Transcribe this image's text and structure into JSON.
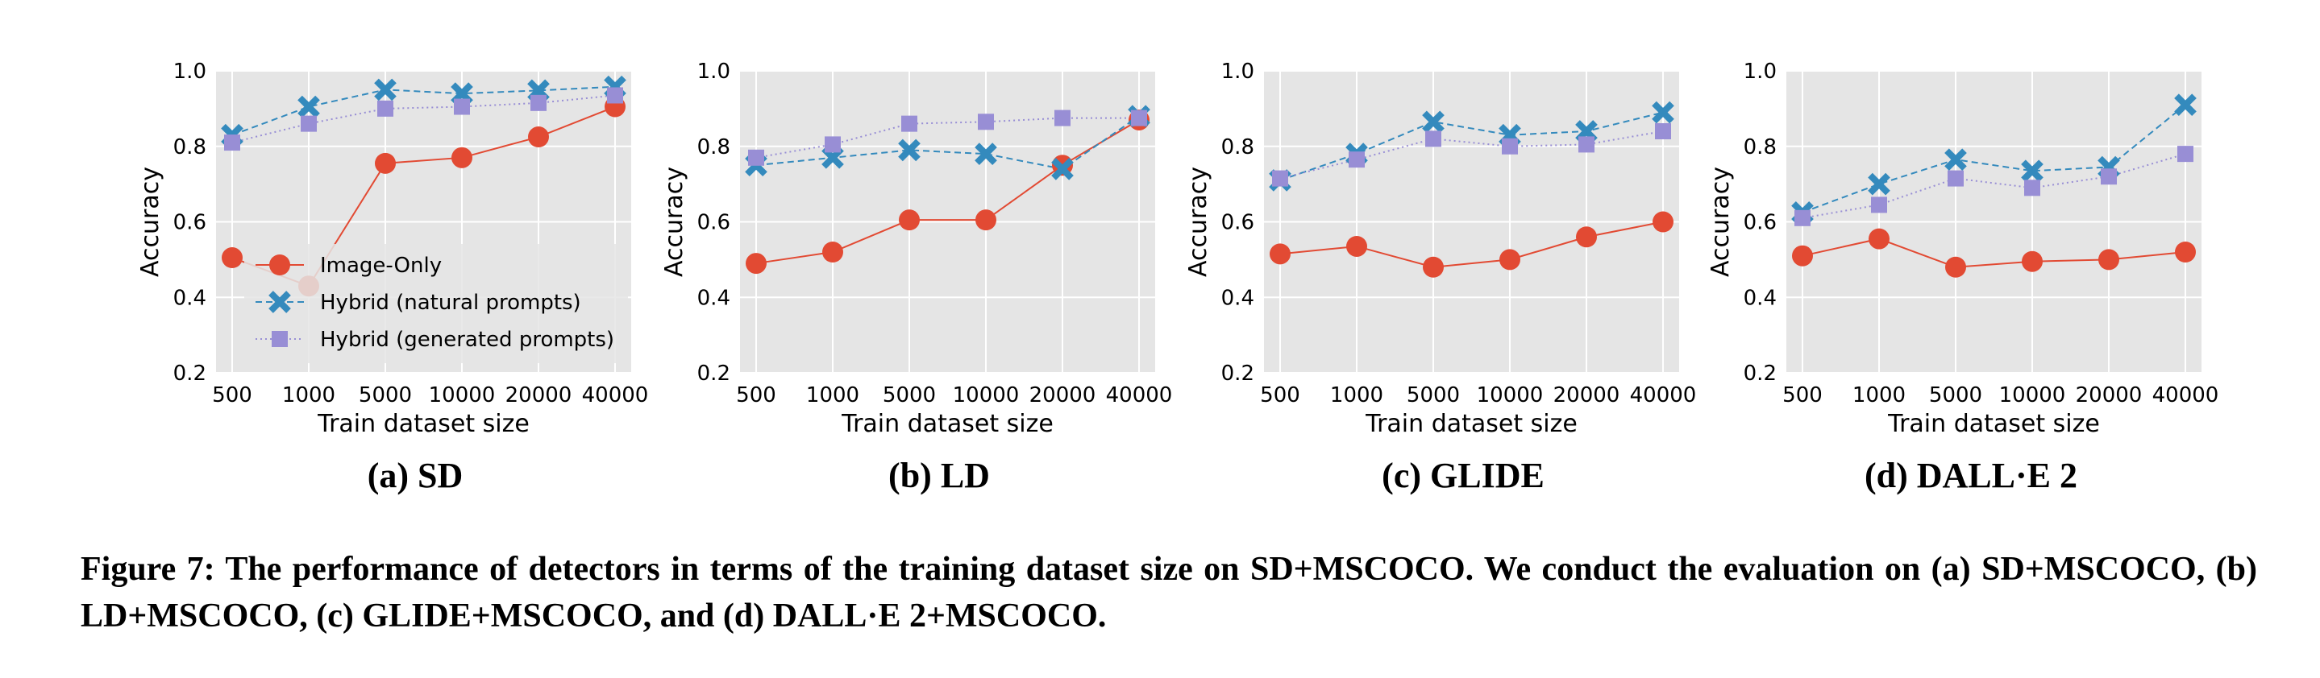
{
  "chart_data": [
    {
      "type": "line",
      "caption": "(a) SD",
      "categories": [
        "500",
        "1000",
        "5000",
        "10000",
        "20000",
        "40000"
      ],
      "xlabel": "Train dataset size",
      "ylabel": "Accuracy",
      "ylim": [
        0.2,
        1.0
      ],
      "yticks": [
        "0.2",
        "0.4",
        "0.6",
        "0.8",
        "1.0"
      ],
      "grid": true,
      "legend": "lower-right",
      "series": [
        {
          "name": "Image-Only",
          "values": [
            0.505,
            0.43,
            0.755,
            0.77,
            0.825,
            0.905
          ]
        },
        {
          "name": "Hybrid (natural prompts)",
          "values": [
            0.83,
            0.905,
            0.95,
            0.94,
            0.948,
            0.958
          ]
        },
        {
          "name": "Hybrid (generated prompts)",
          "values": [
            0.81,
            0.86,
            0.9,
            0.905,
            0.915,
            0.935
          ]
        }
      ]
    },
    {
      "type": "line",
      "caption": "(b) LD",
      "categories": [
        "500",
        "1000",
        "5000",
        "10000",
        "20000",
        "40000"
      ],
      "xlabel": "Train dataset size",
      "ylabel": "Accuracy",
      "ylim": [
        0.2,
        1.0
      ],
      "yticks": [
        "0.2",
        "0.4",
        "0.6",
        "0.8",
        "1.0"
      ],
      "grid": true,
      "series": [
        {
          "values": [
            0.49,
            0.52,
            0.605,
            0.605,
            0.75,
            0.87
          ]
        },
        {
          "values": [
            0.75,
            0.77,
            0.79,
            0.78,
            0.74,
            0.88
          ]
        },
        {
          "values": [
            0.77,
            0.805,
            0.86,
            0.865,
            0.875,
            0.875
          ]
        }
      ]
    },
    {
      "type": "line",
      "caption": "(c) GLIDE",
      "categories": [
        "500",
        "1000",
        "5000",
        "10000",
        "20000",
        "40000"
      ],
      "xlabel": "Train dataset size",
      "ylabel": "Accuracy",
      "ylim": [
        0.2,
        1.0
      ],
      "yticks": [
        "0.2",
        "0.4",
        "0.6",
        "0.8",
        "1.0"
      ],
      "grid": true,
      "series": [
        {
          "values": [
            0.515,
            0.535,
            0.48,
            0.5,
            0.56,
            0.6
          ]
        },
        {
          "values": [
            0.71,
            0.78,
            0.865,
            0.83,
            0.84,
            0.89
          ]
        },
        {
          "values": [
            0.715,
            0.765,
            0.82,
            0.8,
            0.805,
            0.84
          ]
        }
      ]
    },
    {
      "type": "line",
      "caption": "(d) DALL·E 2",
      "categories": [
        "500",
        "1000",
        "5000",
        "10000",
        "20000",
        "40000"
      ],
      "xlabel": "Train dataset size",
      "ylabel": "Accuracy",
      "ylim": [
        0.2,
        1.0
      ],
      "yticks": [
        "0.2",
        "0.4",
        "0.6",
        "0.8",
        "1.0"
      ],
      "grid": true,
      "series": [
        {
          "values": [
            0.51,
            0.555,
            0.48,
            0.495,
            0.5,
            0.52
          ]
        },
        {
          "values": [
            0.625,
            0.7,
            0.765,
            0.735,
            0.745,
            0.91
          ]
        },
        {
          "values": [
            0.61,
            0.645,
            0.715,
            0.69,
            0.72,
            0.78
          ]
        }
      ]
    }
  ],
  "styles": {
    "series_colors": [
      "#e24a33",
      "#348abd",
      "#988ed5"
    ],
    "axes_background": "#e5e5e5",
    "grid_color": "#ffffff"
  },
  "caption_text": "Figure 7: The performance of detectors in terms of the training dataset size on SD+MSCOCO. We conduct the evaluation on (a) SD+MSCOCO, (b) LD+MSCOCO, (c) GLIDE+MSCOCO, and (d) DALL·E 2+MSCOCO."
}
